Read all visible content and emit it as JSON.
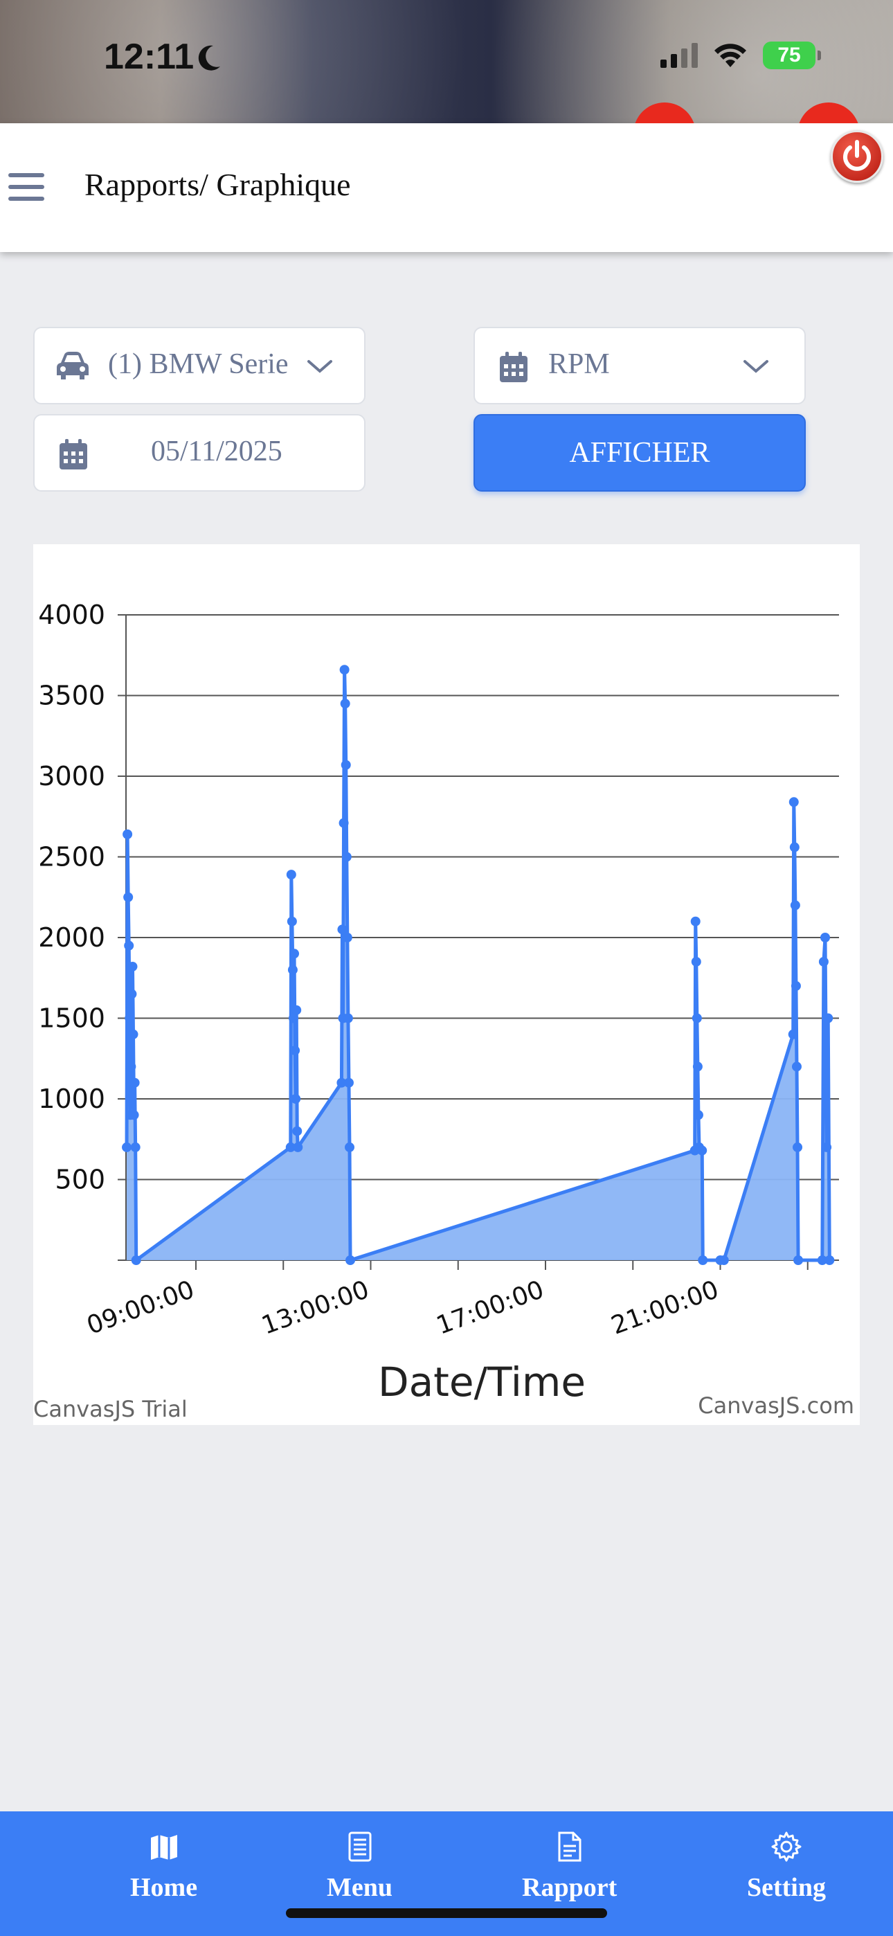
{
  "status_bar": {
    "time": "12:11",
    "battery": "75"
  },
  "header": {
    "title": "Rapports/ Graphique"
  },
  "filters": {
    "vehicle": "(1) BMW Serie",
    "metric": "RPM",
    "date": "05/11/2025",
    "submit_label": "AFFICHER"
  },
  "chart_data": {
    "type": "area",
    "xlabel": "Date/Time",
    "ylabel": "",
    "ylim": [
      0,
      4000
    ],
    "yticks": [
      "4000",
      "3500",
      "3000",
      "2500",
      "2000",
      "1500",
      "1000",
      "500"
    ],
    "xticks": [
      "09:00:00",
      "13:00:00",
      "17:00:00",
      "21:00:00"
    ],
    "x_range": [
      "07:24:00",
      "23:43:00"
    ],
    "grid": "horizontal",
    "color": "#3b7ef5",
    "fill": "#8ab4f6",
    "series": [
      {
        "points": [
          [
            "07:25:00",
            700
          ],
          [
            "07:26:00",
            2640
          ],
          [
            "07:27:00",
            2250
          ],
          [
            "07:28:00",
            1950
          ],
          [
            "07:29:00",
            1500
          ],
          [
            "07:30:00",
            900
          ],
          [
            "07:31:00",
            1200
          ],
          [
            "07:32:00",
            1650
          ],
          [
            "07:33:00",
            1820
          ],
          [
            "07:34:00",
            1400
          ],
          [
            "07:35:00",
            900
          ],
          [
            "07:36:00",
            1100
          ],
          [
            "07:37:00",
            700
          ],
          [
            "07:38:00",
            0
          ],
          [
            "11:10:00",
            700
          ],
          [
            "11:11:00",
            2390
          ],
          [
            "11:12:00",
            2100
          ],
          [
            "11:13:00",
            1800
          ],
          [
            "11:14:00",
            1500
          ],
          [
            "11:15:00",
            1900
          ],
          [
            "11:16:00",
            1300
          ],
          [
            "11:17:00",
            1000
          ],
          [
            "11:18:00",
            1550
          ],
          [
            "11:19:00",
            800
          ],
          [
            "11:20:00",
            700
          ],
          [
            "12:20:00",
            1100
          ],
          [
            "12:21:00",
            2050
          ],
          [
            "12:22:00",
            1500
          ],
          [
            "12:23:00",
            2710
          ],
          [
            "12:24:00",
            3660
          ],
          [
            "12:25:00",
            3450
          ],
          [
            "12:26:00",
            3070
          ],
          [
            "12:27:00",
            2500
          ],
          [
            "12:28:00",
            2000
          ],
          [
            "12:29:00",
            1500
          ],
          [
            "12:30:00",
            1100
          ],
          [
            "12:31:00",
            700
          ],
          [
            "12:32:00",
            0
          ],
          [
            "20:25:00",
            680
          ],
          [
            "20:26:00",
            2100
          ],
          [
            "20:27:00",
            1850
          ],
          [
            "20:28:00",
            1500
          ],
          [
            "20:29:00",
            1200
          ],
          [
            "20:30:00",
            900
          ],
          [
            "20:31:00",
            700
          ],
          [
            "20:35:00",
            680
          ],
          [
            "20:36:00",
            0
          ],
          [
            "21:00:00",
            0
          ],
          [
            "21:05:00",
            0
          ],
          [
            "22:40:00",
            1400
          ],
          [
            "22:41:00",
            2840
          ],
          [
            "22:42:00",
            2560
          ],
          [
            "22:43:00",
            2200
          ],
          [
            "22:44:00",
            1700
          ],
          [
            "22:45:00",
            1200
          ],
          [
            "22:46:00",
            700
          ],
          [
            "22:47:00",
            0
          ],
          [
            "23:20:00",
            0
          ],
          [
            "23:22:00",
            1850
          ],
          [
            "23:24:00",
            2000
          ],
          [
            "23:26:00",
            700
          ],
          [
            "23:28:00",
            1500
          ],
          [
            "23:30:00",
            0
          ]
        ]
      }
    ],
    "watermarks": {
      "left": "CanvasJS Trial",
      "right": "CanvasJS.com"
    }
  },
  "bottom_nav": [
    {
      "label": "Home",
      "icon": "map-icon"
    },
    {
      "label": "Menu",
      "icon": "list-icon"
    },
    {
      "label": "Rapport",
      "icon": "report-icon"
    },
    {
      "label": "Setting",
      "icon": "gear-icon"
    }
  ]
}
